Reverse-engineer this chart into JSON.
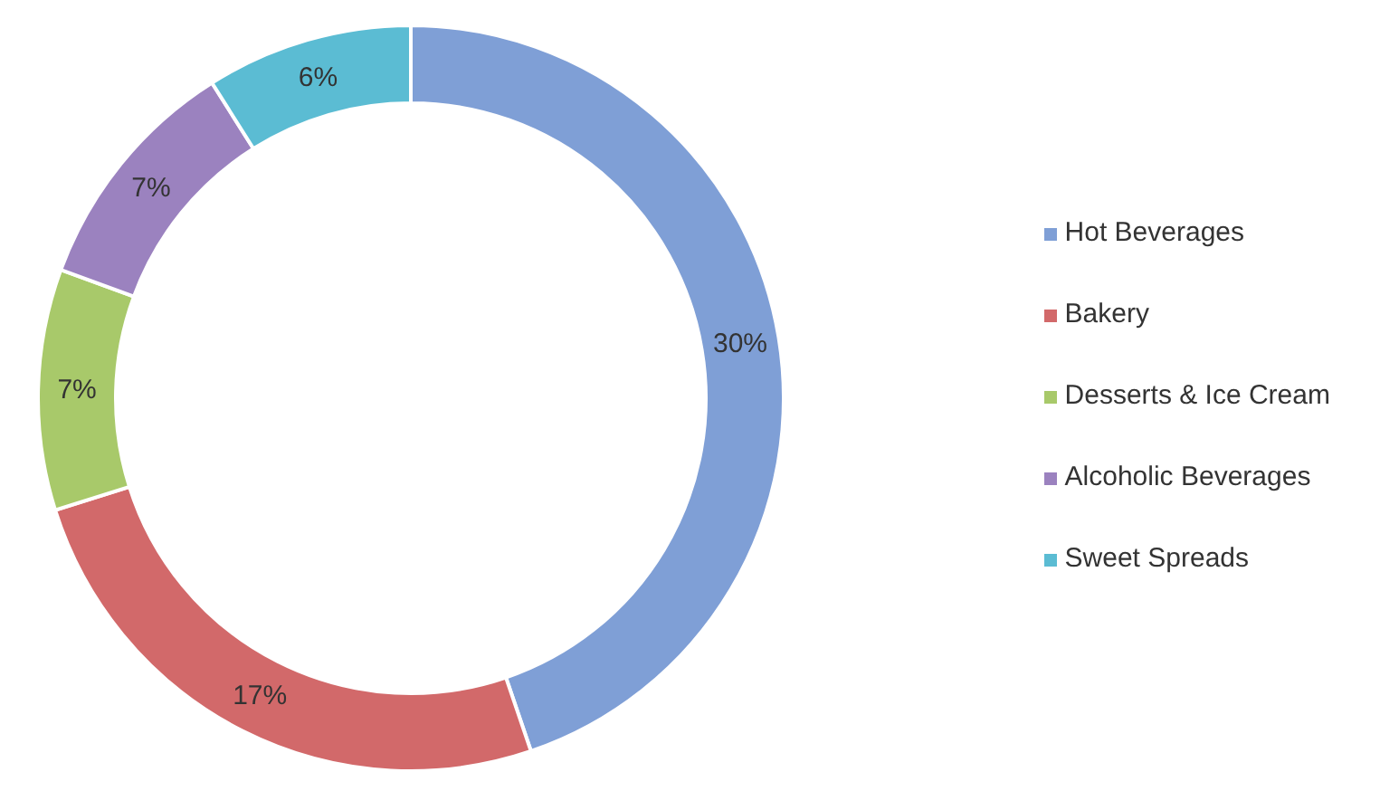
{
  "chart_data": {
    "type": "donut",
    "categories": [
      "Hot Beverages",
      "Bakery",
      "Desserts & Ice Cream",
      "Alcoholic Beverages",
      "Sweet Spreads"
    ],
    "values": [
      30,
      17,
      7,
      7,
      6
    ],
    "value_labels": [
      "30%",
      "17%",
      "7%",
      "7%",
      "6%"
    ],
    "colors": [
      "#7f9fd6",
      "#d2696a",
      "#a8c96a",
      "#9b82bf",
      "#5bbcd3"
    ],
    "legend": "right"
  }
}
